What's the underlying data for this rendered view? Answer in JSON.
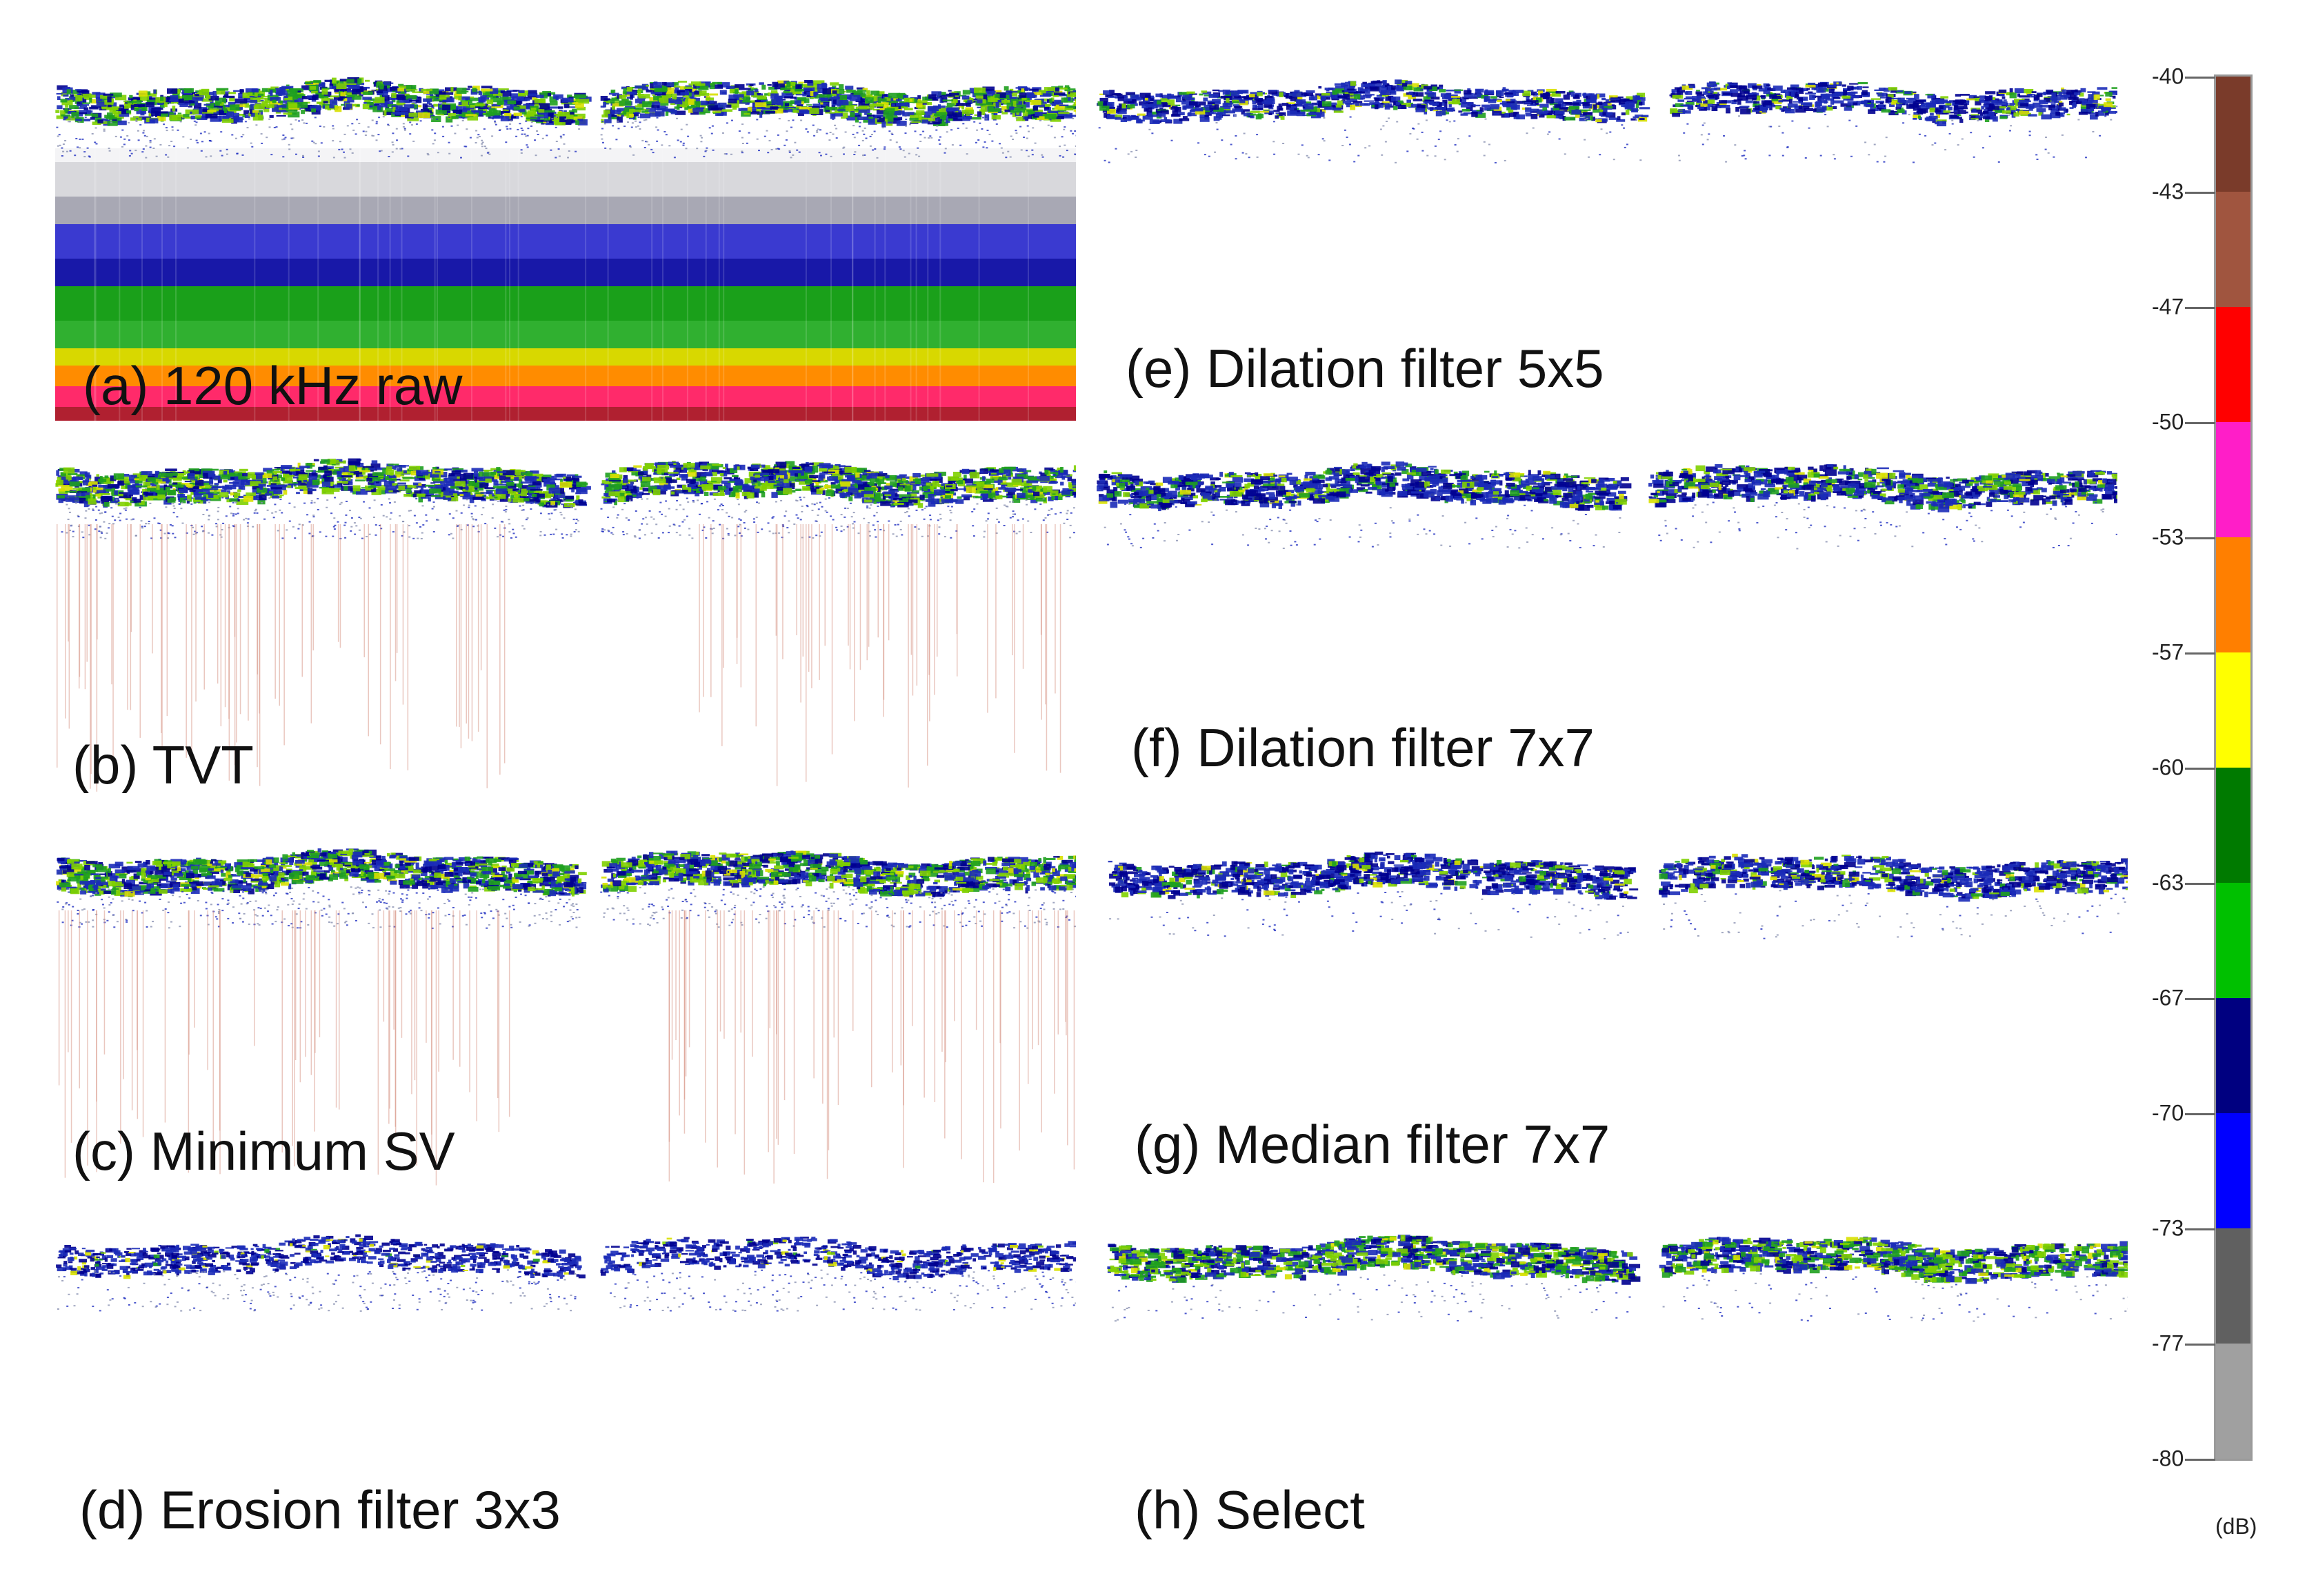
{
  "panels": [
    {
      "id": "a",
      "label": "(a) 120 kHz raw"
    },
    {
      "id": "b",
      "label": "(b) TVT"
    },
    {
      "id": "c",
      "label": "(c) Minimum SV"
    },
    {
      "id": "d",
      "label": "(d) Erosion filter 3x3"
    },
    {
      "id": "e",
      "label": "(e) Dilation filter 5x5"
    },
    {
      "id": "f",
      "label": "(f) Dilation filter 7x7"
    },
    {
      "id": "g",
      "label": "(g) Median filter 7x7"
    },
    {
      "id": "h",
      "label": "(h) Select"
    }
  ],
  "colorbar": {
    "ticks": [
      "-40",
      "-43",
      "-47",
      "-50",
      "-53",
      "-57",
      "-60",
      "-63",
      "-67",
      "-70",
      "-73",
      "-77",
      "-80"
    ],
    "colors": [
      "#7a3b2a",
      "#a0553f",
      "#ff0000",
      "#ff1ec8",
      "#ff7f00",
      "#ffff00",
      "#007a00",
      "#00c000",
      "#000080",
      "#0000ff",
      "#606060",
      "#a0a0a0"
    ],
    "unit": "(dB)"
  }
}
